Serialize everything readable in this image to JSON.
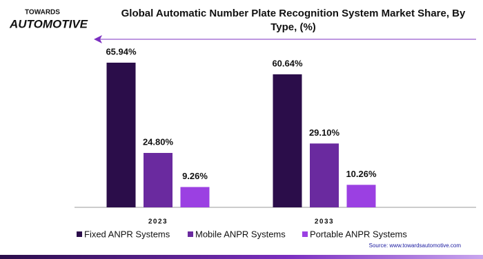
{
  "logo": {
    "top": "TOWARDS",
    "bottom": "AUTOMOTIVE"
  },
  "chart_data": {
    "type": "bar",
    "title": "Global Automatic Number Plate Recognition System Market Share, By Type, (%)",
    "categories": [
      "2023",
      "2033"
    ],
    "series": [
      {
        "name": "Fixed ANPR Systems",
        "color": "#2b0d4a",
        "values": [
          65.94,
          60.64
        ],
        "value_labels": [
          "65.94%",
          "60.64%"
        ]
      },
      {
        "name": "Mobile ANPR Systems",
        "color": "#6a2a9f",
        "values": [
          24.8,
          29.1
        ],
        "value_labels": [
          "24.80%",
          "29.10%"
        ]
      },
      {
        "name": "Portable ANPR Systems",
        "color": "#9b40e2",
        "values": [
          9.26,
          10.26
        ],
        "value_labels": [
          "9.26%",
          "10.26%"
        ]
      }
    ],
    "source": "Source: www.towardsautomotive.com"
  }
}
